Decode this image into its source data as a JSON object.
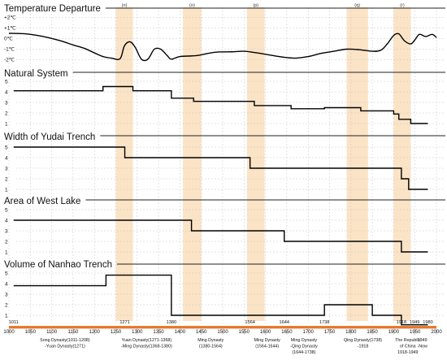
{
  "chart_data": {
    "type": "line",
    "xlim": [
      1000,
      2000
    ],
    "x_ticks": [
      1000,
      1050,
      1100,
      1150,
      1200,
      1250,
      1300,
      1350,
      1400,
      1450,
      1500,
      1550,
      1600,
      1650,
      1700,
      1750,
      1800,
      1850,
      1900,
      1950,
      2000
    ],
    "highlight_periods": [
      {
        "label": "(n)",
        "start": 1250,
        "end": 1290
      },
      {
        "label": "(o)",
        "start": 1407,
        "end": 1450
      },
      {
        "label": "(p)",
        "start": 1557,
        "end": 1598
      },
      {
        "label": "(q)",
        "start": 1790,
        "end": 1840
      },
      {
        "label": "(r)",
        "start": 1900,
        "end": 1940
      }
    ],
    "temperature": {
      "title": "Temperature Departure",
      "y_labels": [
        "+2℃",
        "+1℃",
        "0℃",
        "-1℃",
        "-2℃"
      ],
      "ylim": [
        -2,
        2
      ],
      "x": [
        1000,
        1040,
        1080,
        1120,
        1150,
        1175,
        1200,
        1220,
        1240,
        1260,
        1270,
        1283,
        1295,
        1310,
        1325,
        1340,
        1355,
        1370,
        1380,
        1400,
        1440,
        1480,
        1520,
        1550,
        1580,
        1610,
        1640,
        1670,
        1700,
        1730,
        1760,
        1790,
        1820,
        1850,
        1870,
        1885,
        1900,
        1912,
        1925,
        1940,
        1950,
        1960,
        1975,
        1990,
        2000
      ],
      "y": [
        0.5,
        0.45,
        0.2,
        -0.2,
        -0.6,
        -0.9,
        -1.35,
        -1.7,
        -1.85,
        -1.9,
        -0.7,
        -0.3,
        -0.8,
        -1.95,
        -1.95,
        -1.0,
        -1.0,
        -1.6,
        -1.95,
        -1.7,
        -1.6,
        -1.3,
        -1.25,
        -1.2,
        -1.35,
        -1.55,
        -1.75,
        -1.85,
        -1.7,
        -1.4,
        -1.2,
        -1.0,
        -1.05,
        -1.2,
        -1.1,
        -0.5,
        0.3,
        0.45,
        -0.2,
        -0.5,
        -0.1,
        0.4,
        0.2,
        0.4,
        0.1
      ]
    },
    "natural_system": {
      "title": "Natural System",
      "y_ticks": [
        1,
        2,
        3,
        4,
        5
      ],
      "steps": [
        [
          1011,
          4.1
        ],
        [
          1220,
          4.5
        ],
        [
          1290,
          4.1
        ],
        [
          1380,
          3.4
        ],
        [
          1432,
          3.1
        ],
        [
          1574,
          2.7
        ],
        [
          1660,
          2.4
        ],
        [
          1738,
          2.5
        ],
        [
          1823,
          2.2
        ],
        [
          1900,
          1.9
        ],
        [
          1912,
          1.4
        ],
        [
          1940,
          1.0
        ],
        [
          1980,
          1.0
        ]
      ]
    },
    "yudai_trench": {
      "title": "Width of Yudai Trench",
      "y_ticks": [
        1,
        2,
        3,
        4,
        5
      ],
      "steps": [
        [
          1011,
          5.0
        ],
        [
          1271,
          4.0
        ],
        [
          1564,
          3.0
        ],
        [
          1918,
          2.0
        ],
        [
          1935,
          1.0
        ],
        [
          1980,
          1.0
        ]
      ]
    },
    "west_lake": {
      "title": "Area of West Lake",
      "y_ticks": [
        1,
        2,
        3,
        4,
        5
      ],
      "steps": [
        [
          1011,
          4.0
        ],
        [
          1427,
          3.0
        ],
        [
          1644,
          2.0
        ],
        [
          1918,
          1.0
        ],
        [
          1980,
          1.0
        ]
      ]
    },
    "nanhao_trench": {
      "title": "Volume of Nanhao Trench",
      "y_ticks": [
        1,
        2,
        3,
        4,
        5
      ],
      "steps": [
        [
          1011,
          3.8
        ],
        [
          1227,
          4.8
        ],
        [
          1380,
          1.0
        ],
        [
          1738,
          2.0
        ],
        [
          1820,
          2.0
        ],
        [
          1850,
          1.0
        ],
        [
          1918,
          0.1
        ],
        [
          1980,
          0.1
        ]
      ]
    },
    "event_years": [
      {
        "label": "1011",
        "x": 1011
      },
      {
        "label": "1271",
        "x": 1271
      },
      {
        "label": "1380",
        "x": 1380
      },
      {
        "label": "1564",
        "x": 1564
      },
      {
        "label": "1644",
        "x": 1644
      },
      {
        "label": "1738",
        "x": 1738
      },
      {
        "label": "1918",
        "x": 1918
      },
      {
        "label": "1949",
        "x": 1949
      },
      {
        "label": "1980",
        "x": 1980
      }
    ],
    "dynasties": [
      {
        "lines": [
          "Song Dynasty(1011-1208)",
          "-Yuan Dynasty(1271)"
        ],
        "x": 1131
      },
      {
        "lines": [
          "Yuan Dynasty(1271-1368)",
          "-Ming Dynasty(1368-1380)"
        ],
        "x": 1322
      },
      {
        "lines": [
          "Ming Dynasty",
          "(1380-1564)"
        ],
        "x": 1472
      },
      {
        "lines": [
          "Ming Dynasty",
          "(1564-1644)"
        ],
        "x": 1604
      },
      {
        "lines": [
          "Ming Dynasty",
          "-Qing Dynasty",
          "(1644-1738)"
        ],
        "x": 1690
      },
      {
        "lines": [
          "Qing Dynasty(1738)",
          "-1918"
        ],
        "x": 1828
      },
      {
        "lines": [
          "The Republic",
          "of China",
          "1918-1949"
        ],
        "x": 1933
      },
      {
        "lines": [
          "1949",
          "-Now"
        ],
        "x": 1967
      }
    ]
  }
}
